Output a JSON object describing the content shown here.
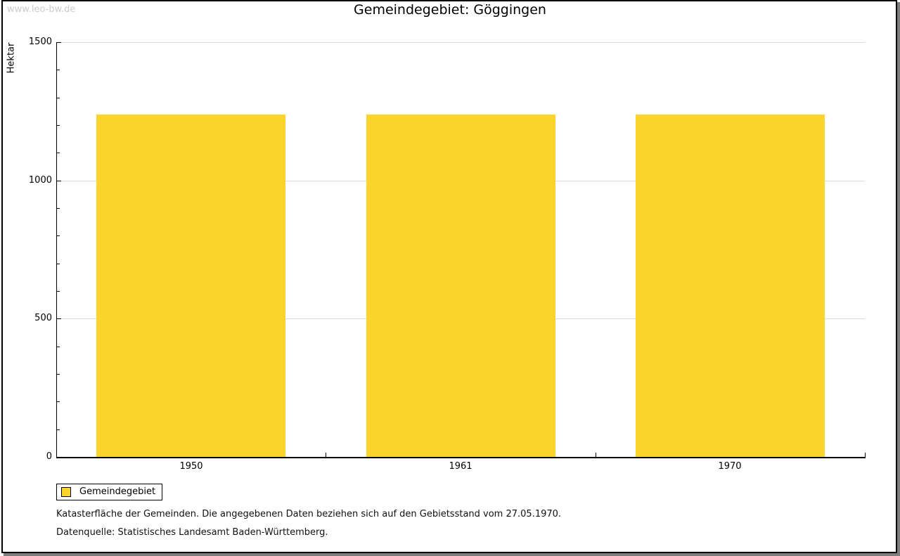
{
  "watermark": "www.leo-bw.de",
  "title": "Gemeindegebiet: Göggingen",
  "chart_data": {
    "type": "bar",
    "categories": [
      "1950",
      "1961",
      "1970"
    ],
    "values": [
      1237,
      1237,
      1237
    ],
    "series_name": "Gemeindegebiet",
    "title": "Gemeindegebiet: Göggingen",
    "xlabel": "",
    "ylabel": "Hektar",
    "ylim": [
      0,
      1500
    ],
    "yticks": [
      0,
      500,
      1000,
      1500
    ],
    "minor_tick_step": 100,
    "grid": true,
    "legend_position": "bottom-left",
    "bar_color": "#FCD42D",
    "grid_color": "#DCDCDC"
  },
  "legend": {
    "label": "Gemeindegebiet",
    "swatch_color": "#FCD42D"
  },
  "footer": {
    "line1": "Katasterfläche der Gemeinden. Die angegebenen Daten beziehen sich auf den Gebietsstand vom 27.05.1970.",
    "line2": "Datenquelle: Statistisches Landesamt Baden-Württemberg."
  }
}
